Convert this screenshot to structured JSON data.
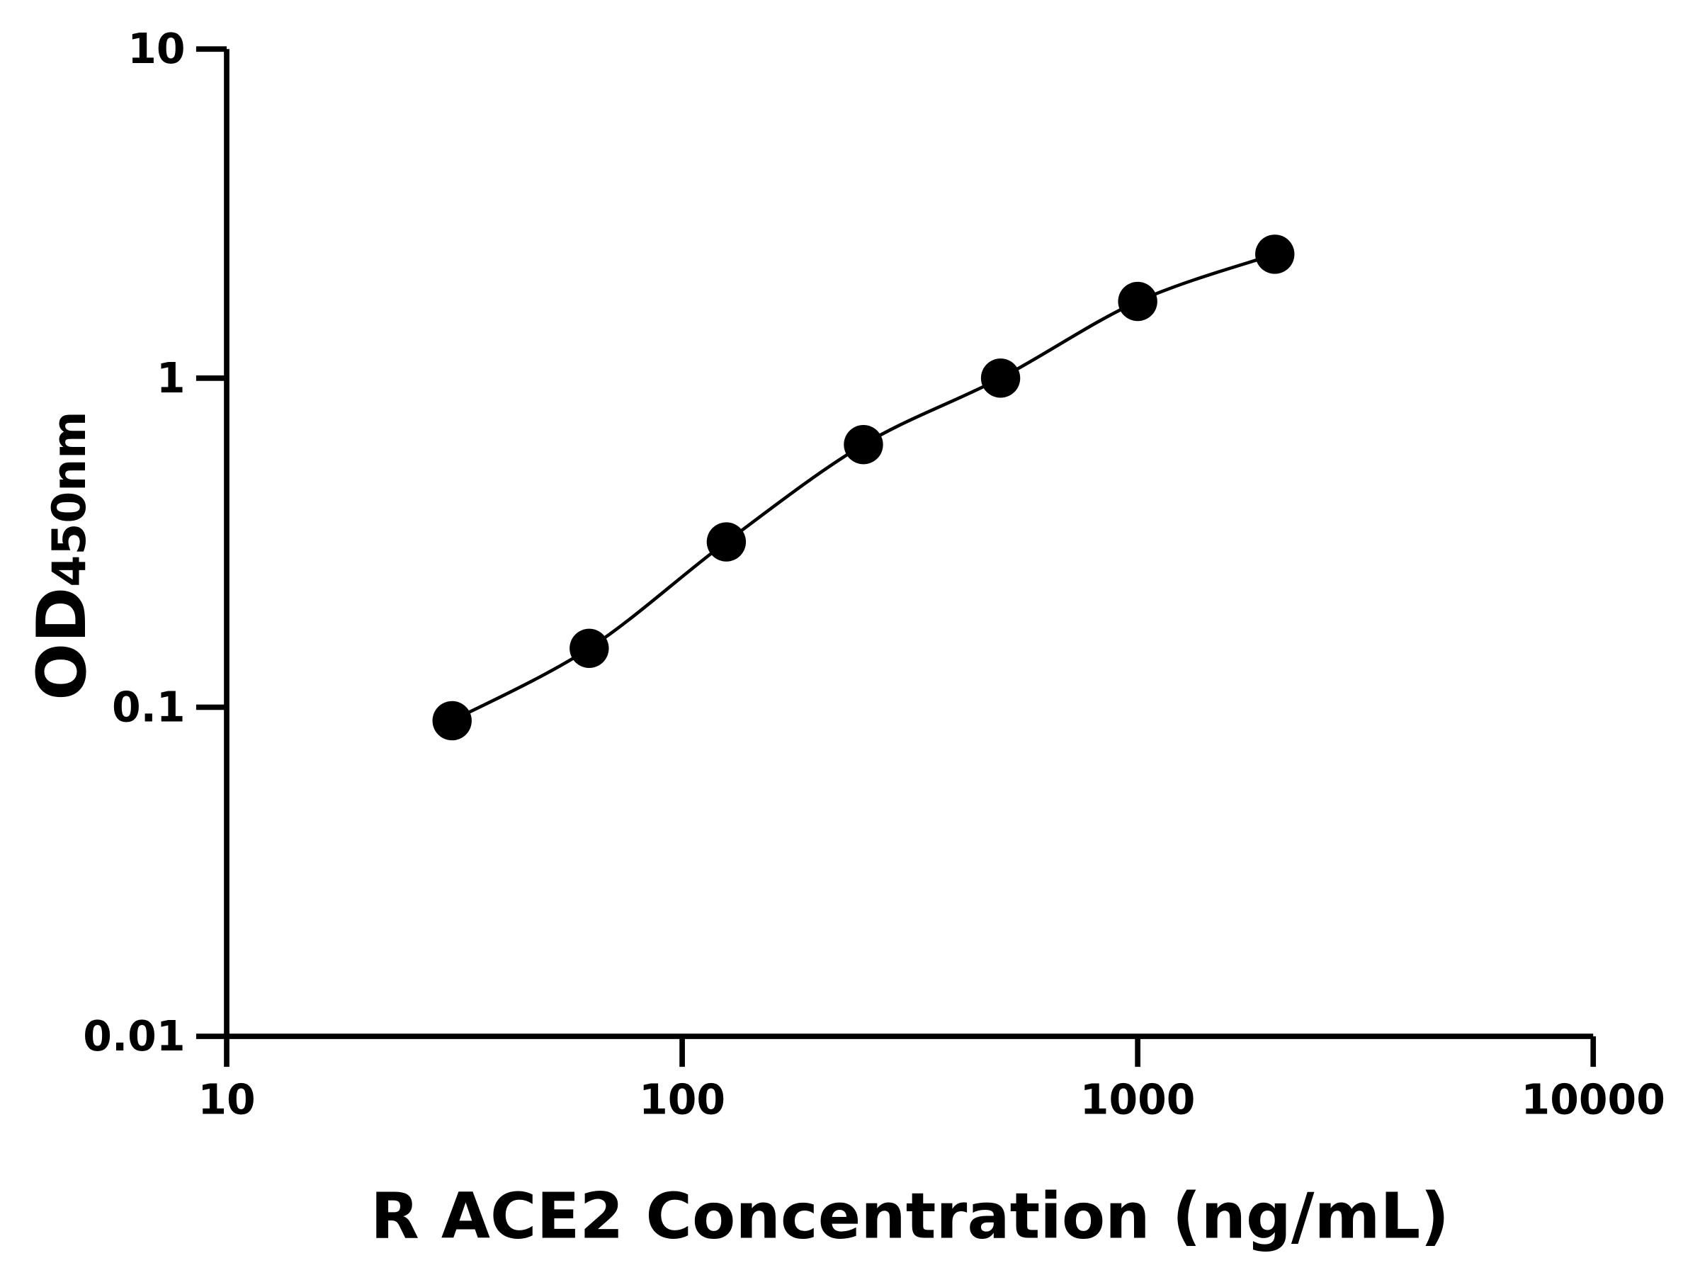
{
  "chart_data": {
    "type": "scatter",
    "title": "",
    "xlabel": "R ACE2 Concentration (ng/mL)",
    "ylabel": "OD",
    "ylabel_subscript": "450nm",
    "x_scale": "log",
    "y_scale": "log",
    "xlim": [
      10,
      10000
    ],
    "ylim": [
      0.01,
      10
    ],
    "x_ticks": [
      "10",
      "100",
      "1000",
      "10000"
    ],
    "y_ticks": [
      "0.01",
      "0.1",
      "1",
      "10"
    ],
    "grid": false,
    "fit_line": true,
    "marker_color": "#000000",
    "line_color": "#000000",
    "series": [
      {
        "x": [
          31.25,
          62.5,
          125,
          250,
          500,
          1000,
          2000
        ],
        "y": [
          0.091,
          0.151,
          0.318,
          0.628,
          1.0,
          1.71,
          2.38
        ]
      }
    ]
  }
}
